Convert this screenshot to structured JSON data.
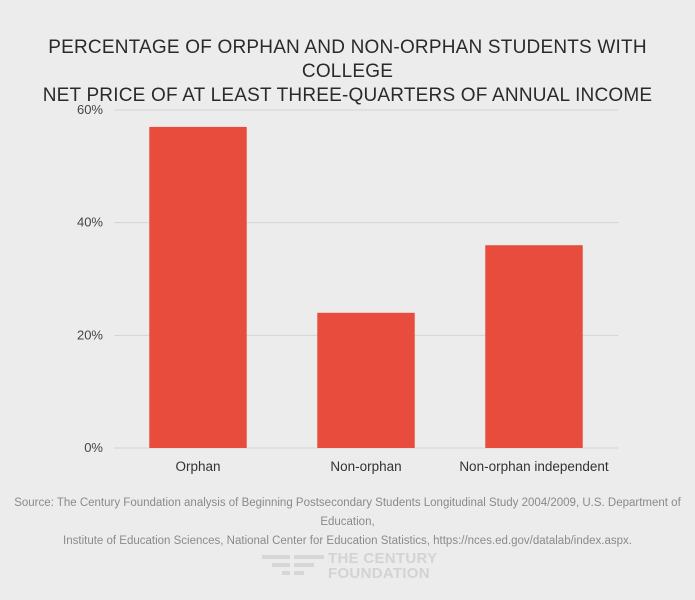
{
  "title_lines": [
    "PERCENTAGE OF ORPHAN AND NON-ORPHAN STUDENTS WITH COLLEGE",
    "NET PRICE OF AT LEAST THREE-QUARTERS OF ANNUAL INCOME"
  ],
  "source_lines": [
    "Source: The Century Foundation analysis of Beginning Postsecondary Students Longitudinal Study 2004/2009, U.S. Department of Education,",
    "Institute of Education Sciences, National Center for Education Statistics, https://nces.ed.gov/datalab/index.aspx."
  ],
  "logo": {
    "line1": "THE CENTURY",
    "line2": "FOUNDATION"
  },
  "colors": {
    "bar": "#e74c3c",
    "background": "#ececec",
    "grid": "#d4d4d4"
  },
  "chart_data": {
    "type": "bar",
    "title": "PERCENTAGE OF ORPHAN AND NON-ORPHAN STUDENTS WITH COLLEGE NET PRICE OF AT LEAST THREE-QUARTERS OF ANNUAL INCOME",
    "categories": [
      "Orphan",
      "Non-orphan",
      "Non-orphan independent"
    ],
    "values": [
      57,
      24,
      36
    ],
    "ylim": [
      0,
      60
    ],
    "yticks": [
      0,
      20,
      40,
      60
    ],
    "ytick_labels": [
      "0%",
      "20%",
      "40%",
      "60%"
    ],
    "grid": true,
    "legend": "none"
  }
}
